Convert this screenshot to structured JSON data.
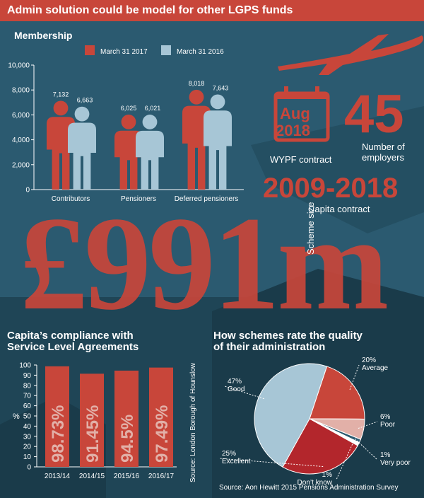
{
  "title": "Admin solution could be model for other LGPS funds",
  "colors": {
    "accent": "#c8463a",
    "light": "#a7c6d6",
    "background": "#2b5a70",
    "white": "#ffffff",
    "pale": "#e2b0a8"
  },
  "membership": {
    "heading": "Membership",
    "legend": [
      "March 31 2017",
      "March 31 2016"
    ]
  },
  "stats": {
    "calendar_month": "Aug",
    "calendar_year": "2018",
    "contract_label": "WYPF contract",
    "employers_value": "45",
    "employers_label_line1": "Number of",
    "employers_label_line2": "employers",
    "capita_years": "2009-2018",
    "capita_label": "Capita contract",
    "scheme_amount": "£991m",
    "scheme_label": "Scheme size"
  },
  "compliance": {
    "heading_line1": "Capita’s compliance with",
    "heading_line2": "Service Level Agreements"
  },
  "quality": {
    "heading_line1": "How schemes rate the quality",
    "heading_line2": "of their administration"
  },
  "sources": {
    "photo": "Source: London Borough of Hounslow",
    "survey": "Source: Aon Hewitt 2015 Pensions Administration Survey"
  },
  "chart_data": [
    {
      "type": "bar",
      "title": "Membership",
      "categories": [
        "Contributors",
        "Pensioners",
        "Deferred pensioners"
      ],
      "series": [
        {
          "name": "March 31 2017",
          "values": [
            7132,
            6025,
            8018
          ],
          "labels": [
            "7,132",
            "6,025",
            "8,018"
          ]
        },
        {
          "name": "March 31 2016",
          "values": [
            6663,
            6021,
            7643
          ],
          "labels": [
            "6,663",
            "6,021",
            "7,643"
          ]
        }
      ],
      "ylim": [
        0,
        10000
      ],
      "yticks": [
        0,
        2000,
        4000,
        6000,
        8000,
        10000
      ],
      "ytick_labels": [
        "0",
        "2,000",
        "4,000",
        "6,000",
        "8,000",
        "10,000"
      ],
      "grid": false
    },
    {
      "type": "bar",
      "title": "Capita’s compliance with Service Level Agreements",
      "categories": [
        "2013/14",
        "2014/15",
        "2015/16",
        "2016/17"
      ],
      "values": [
        98.73,
        91.45,
        94.5,
        97.49
      ],
      "labels": [
        "98.73%",
        "91.45%",
        "94.5%",
        "97.49%"
      ],
      "ylabel": "%",
      "ylim": [
        0,
        100
      ],
      "yticks": [
        0,
        10,
        20,
        30,
        40,
        50,
        60,
        70,
        80,
        90,
        100
      ],
      "ytick_labels": [
        "0",
        "10",
        "20",
        "30",
        "40",
        "50",
        "60",
        "70",
        "80",
        "90",
        "100"
      ]
    },
    {
      "type": "pie",
      "title": "How schemes rate the quality of their administration",
      "slices": [
        {
          "name": "Average",
          "value": 20,
          "label": "20%",
          "color": "#c8463a"
        },
        {
          "name": "Poor",
          "value": 6,
          "label": "6%",
          "color": "#e2b0a8"
        },
        {
          "name": "Very poor",
          "value": 1,
          "label": "1%",
          "color": "#2b5a70"
        },
        {
          "name": "Don’t know",
          "value": 1,
          "label": "1%",
          "color": "#ffffff"
        },
        {
          "name": "Excellent",
          "value": 25,
          "label": "25%",
          "color": "#b3262c"
        },
        {
          "name": "Good",
          "value": 47,
          "label": "47%",
          "color": "#a7c6d6"
        }
      ]
    }
  ]
}
